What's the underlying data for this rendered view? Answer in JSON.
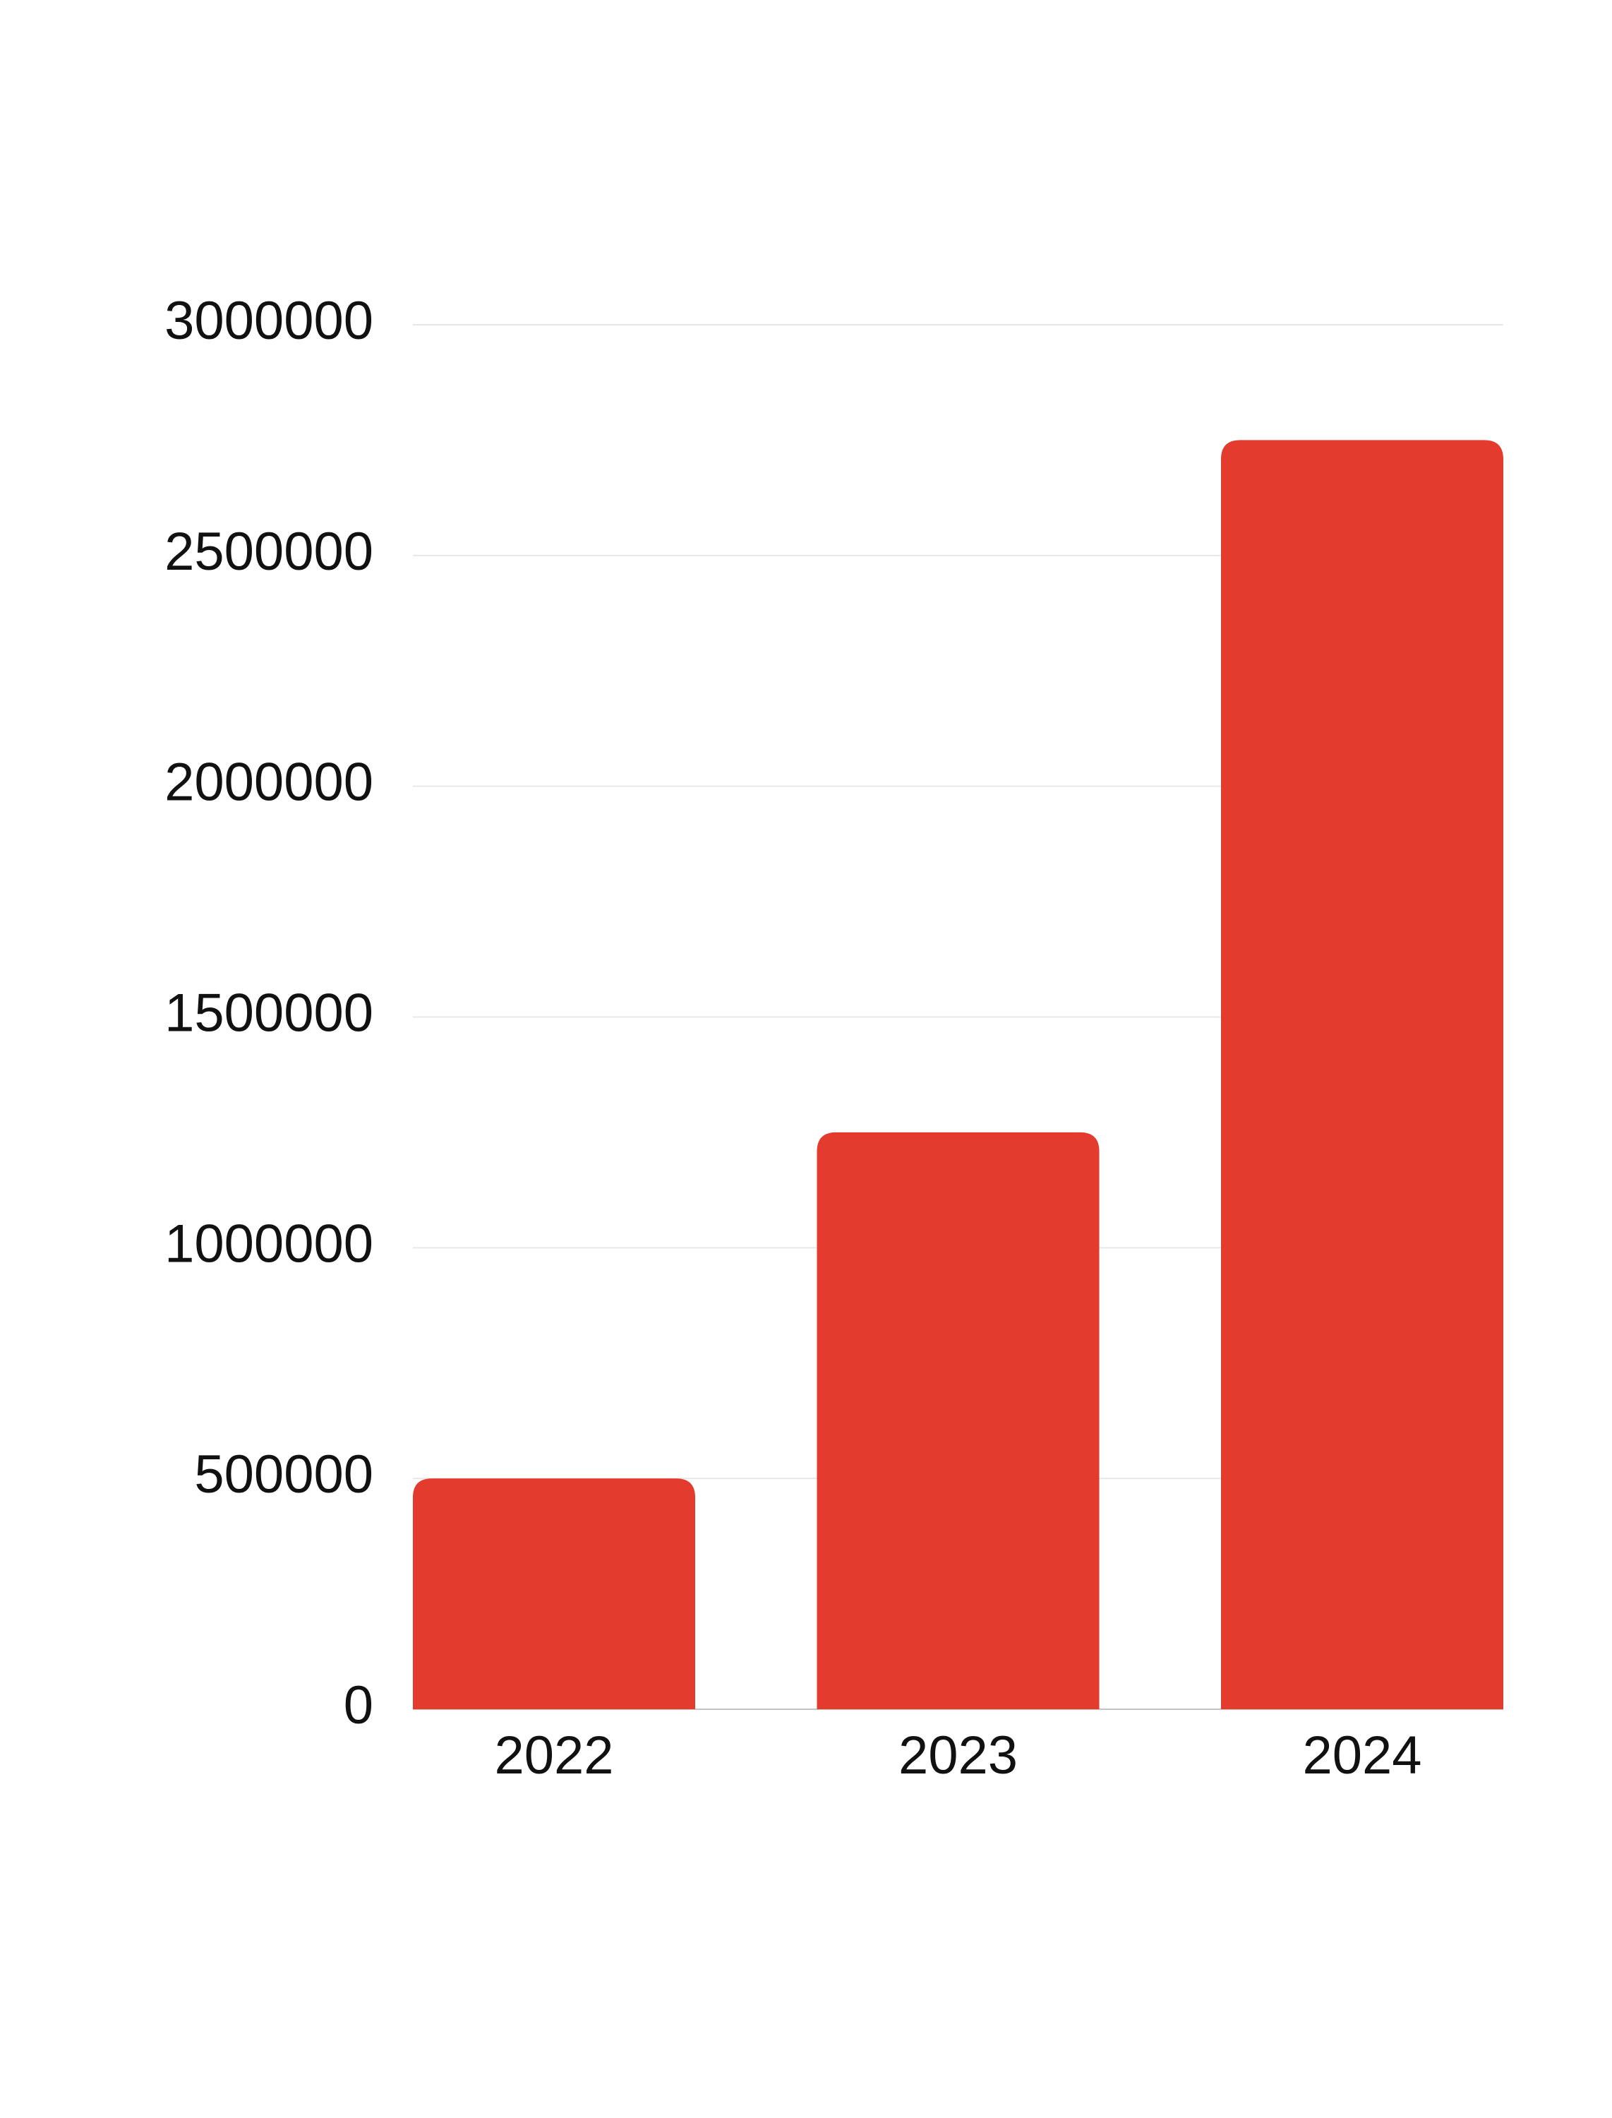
{
  "chart_data": {
    "type": "bar",
    "categories": [
      "2022",
      "2023",
      "2024"
    ],
    "values": [
      500000,
      1250000,
      2750000
    ],
    "color": "#e33b2e",
    "ylim": [
      0,
      3000000
    ],
    "yticks": [
      0,
      500000,
      1000000,
      1500000,
      2000000,
      2500000,
      3000000
    ],
    "grid": true
  }
}
